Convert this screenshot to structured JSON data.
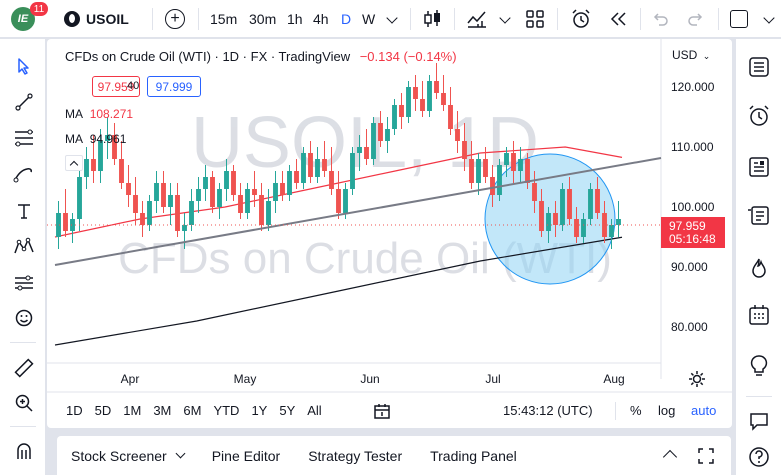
{
  "topbar": {
    "notification_count": "11",
    "symbol": "USOIL",
    "intervals": [
      "15m",
      "30m",
      "1h",
      "4h",
      "D",
      "W"
    ],
    "active_interval": "D"
  },
  "legend": {
    "title": "CFDs on Crude Oil (WTI) · 1D · FX · TradingView",
    "change": "−0.134 (−0.14%)",
    "sell_price": "97.959",
    "spread": "40",
    "buy_price": "97.999",
    "ma1_label": "MA",
    "ma1_value": "108.271",
    "ma2_label": "MA",
    "ma2_value": "94.961"
  },
  "watermark": {
    "symbol": "USOIL, 1D",
    "description": "CFDs on Crude Oil (WTI)"
  },
  "price_axis": {
    "currency": "USD",
    "ticks": [
      "120.000",
      "110.000",
      "100.000",
      "90.000",
      "80.000"
    ],
    "current_price": "97.959",
    "countdown": "05:16:48"
  },
  "time_axis": {
    "labels": [
      "Apr",
      "May",
      "Jun",
      "Jul",
      "Aug"
    ]
  },
  "range_bar": {
    "ranges": [
      "1D",
      "5D",
      "1M",
      "3M",
      "6M",
      "YTD",
      "1Y",
      "5Y",
      "All"
    ],
    "clock": "15:43:12 (UTC)",
    "percent": "%",
    "log": "log",
    "auto": "auto"
  },
  "bottom_tabs": [
    "Stock Screener",
    "Pine Editor",
    "Strategy Tester",
    "Trading Panel"
  ],
  "colors": {
    "up": "#26a69a",
    "down": "#ef5350",
    "accent": "#2962ff",
    "ma_red": "#f23645",
    "ma_black": "#131722",
    "circle_fill": "#8fd3f4"
  },
  "chart_data": {
    "type": "candlestick",
    "timeframe": "1D",
    "ylim": [
      74,
      128
    ],
    "ohlc_approx": [
      [
        95,
        101,
        93,
        99
      ],
      [
        99,
        103,
        95,
        96
      ],
      [
        96,
        99,
        94,
        98
      ],
      [
        98,
        107,
        96,
        105
      ],
      [
        105,
        110,
        103,
        108
      ],
      [
        108,
        112,
        104,
        106
      ],
      [
        106,
        113,
        104,
        111
      ],
      [
        111,
        115,
        108,
        112
      ],
      [
        112,
        114,
        107,
        108
      ],
      [
        108,
        111,
        103,
        104
      ],
      [
        104,
        107,
        100,
        102
      ],
      [
        102,
        105,
        97,
        99
      ],
      [
        99,
        101,
        95,
        97
      ],
      [
        97,
        102,
        96,
        101
      ],
      [
        101,
        106,
        99,
        104
      ],
      [
        104,
        106,
        99,
        100
      ],
      [
        100,
        104,
        97,
        102
      ],
      [
        102,
        104,
        95,
        96
      ],
      [
        96,
        99,
        93,
        97
      ],
      [
        97,
        103,
        96,
        101
      ],
      [
        101,
        105,
        99,
        103
      ],
      [
        103,
        107,
        101,
        105
      ],
      [
        105,
        106,
        99,
        100
      ],
      [
        100,
        104,
        98,
        103
      ],
      [
        103,
        108,
        101,
        106
      ],
      [
        106,
        107,
        101,
        102
      ],
      [
        102,
        104,
        98,
        99
      ],
      [
        99,
        104,
        98,
        103
      ],
      [
        103,
        106,
        100,
        102
      ],
      [
        102,
        104,
        96,
        97
      ],
      [
        97,
        103,
        96,
        101
      ],
      [
        101,
        106,
        99,
        104
      ],
      [
        104,
        106,
        101,
        102
      ],
      [
        102,
        107,
        101,
        106
      ],
      [
        106,
        108,
        103,
        104
      ],
      [
        104,
        110,
        103,
        109
      ],
      [
        109,
        111,
        104,
        105
      ],
      [
        105,
        110,
        104,
        108
      ],
      [
        108,
        111,
        105,
        106
      ],
      [
        106,
        110,
        102,
        103
      ],
      [
        103,
        106,
        98,
        99
      ],
      [
        99,
        104,
        98,
        103
      ],
      [
        103,
        110,
        102,
        109
      ],
      [
        109,
        112,
        106,
        110
      ],
      [
        110,
        113,
        107,
        108
      ],
      [
        108,
        115,
        107,
        114
      ],
      [
        114,
        116,
        110,
        111
      ],
      [
        111,
        115,
        109,
        113
      ],
      [
        113,
        118,
        112,
        117
      ],
      [
        117,
        119,
        113,
        115
      ],
      [
        115,
        121,
        114,
        120
      ],
      [
        120,
        122,
        116,
        118
      ],
      [
        118,
        121,
        115,
        116
      ],
      [
        116,
        122,
        115,
        121
      ],
      [
        121,
        124,
        118,
        119
      ],
      [
        119,
        122,
        116,
        117
      ],
      [
        117,
        120,
        112,
        113
      ],
      [
        113,
        116,
        109,
        111
      ],
      [
        111,
        114,
        106,
        108
      ],
      [
        108,
        111,
        103,
        104
      ],
      [
        104,
        109,
        102,
        108
      ],
      [
        108,
        110,
        104,
        105
      ],
      [
        105,
        107,
        100,
        102
      ],
      [
        102,
        108,
        101,
        107
      ],
      [
        107,
        110,
        105,
        109
      ],
      [
        109,
        111,
        104,
        106
      ],
      [
        106,
        110,
        104,
        108
      ],
      [
        108,
        109,
        103,
        104
      ],
      [
        104,
        106,
        99,
        101
      ],
      [
        101,
        103,
        95,
        96
      ],
      [
        96,
        100,
        94,
        99
      ],
      [
        99,
        101,
        95,
        97
      ],
      [
        97,
        104,
        96,
        103
      ],
      [
        103,
        105,
        97,
        98
      ],
      [
        98,
        100,
        94,
        95
      ],
      [
        95,
        99,
        94,
        98
      ],
      [
        98,
        104,
        97,
        103
      ],
      [
        103,
        105,
        98,
        99
      ],
      [
        99,
        101,
        94,
        95
      ],
      [
        95,
        98,
        93,
        97
      ],
      [
        97,
        101,
        95,
        98
      ]
    ],
    "ma_red_approx": [
      [
        0,
        95
      ],
      [
        0.15,
        98
      ],
      [
        0.3,
        100
      ],
      [
        0.45,
        103
      ],
      [
        0.6,
        106
      ],
      [
        0.75,
        109
      ],
      [
        0.9,
        110
      ],
      [
        1,
        108.271
      ]
    ],
    "ma_black_approx": [
      [
        0,
        77
      ],
      [
        0.25,
        81
      ],
      [
        0.5,
        86
      ],
      [
        0.75,
        91
      ],
      [
        1,
        94.961
      ]
    ]
  }
}
